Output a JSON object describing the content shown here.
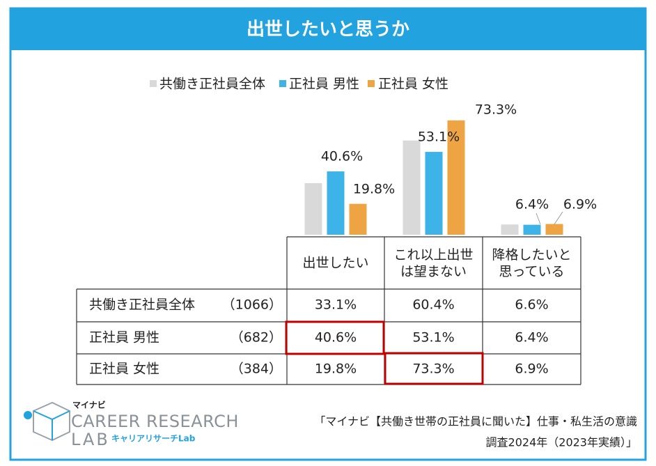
{
  "chart_data": {
    "type": "bar",
    "title": "出世したいと思うか",
    "categories": [
      "出世したい",
      "これ以上出世は望まない",
      "降格したいと思っている"
    ],
    "series": [
      {
        "name": "共働き正社員全体",
        "sample_size": "（1066）",
        "color": "#d9d9d9",
        "values": [
          33.1,
          60.4,
          6.6
        ],
        "value_labels": [
          "33.1%",
          "60.4%",
          "6.6%"
        ]
      },
      {
        "name": "正社員 男性",
        "sample_size": "（682）",
        "color": "#3db3e8",
        "values": [
          40.6,
          53.1,
          6.4
        ],
        "value_labels": [
          "40.6%",
          "53.1%",
          "6.4%"
        ]
      },
      {
        "name": "正社員 女性",
        "sample_size": "（384）",
        "color": "#eea443",
        "values": [
          19.8,
          73.3,
          6.9
        ],
        "value_labels": [
          "19.8%",
          "73.3%",
          "6.9%"
        ]
      }
    ],
    "logo": {
      "brand": "マイナビ",
      "line1": "CAREER RESEARCH",
      "line2": "LAB",
      "sub": "キャリアリサーチLab"
    },
    "source": [
      "「マイナビ【共働き世帯の正社員に聞いた】仕事・私生活の意識",
      "調査2024年（2023年実績）」"
    ]
  }
}
